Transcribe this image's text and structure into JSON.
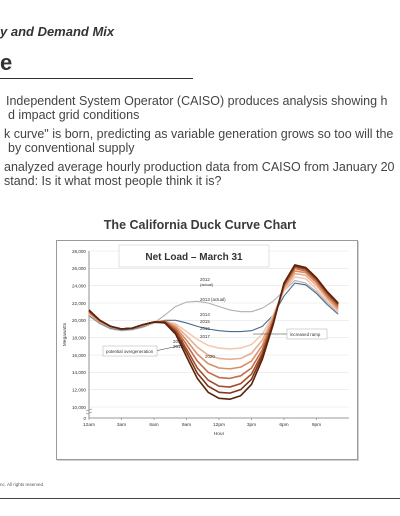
{
  "slide": {
    "kicker": "y and Demand Mix",
    "title": "e",
    "bullets": [
      "Independent System Operator (CAISO) produces analysis showing h",
      "d impact grid conditions",
      "k curve\" is born, predicting as variable generation grows so too will the",
      "by conventional supply",
      "analyzed average hourly production data from CAISO from January 20",
      "stand: Is it what most people think it is?"
    ],
    "footer": "nc. All rights reserved."
  },
  "chart_caption": "The California Duck Curve Chart",
  "chart_data": {
    "type": "line",
    "title": "Net Load – March 31",
    "xlabel": "Hour",
    "ylabel": "Megawatts",
    "ylim": [
      0,
      28000
    ],
    "y_ticks": [
      0,
      10000,
      12000,
      14000,
      16000,
      18000,
      20000,
      22000,
      24000,
      26000,
      28000
    ],
    "y_tick_labels": [
      "0",
      "10,000",
      "12,000",
      "14,000",
      "16,000",
      "18,000",
      "20,000",
      "22,000",
      "24,000",
      "26,000",
      "28,000"
    ],
    "x_ticks": [
      0,
      3,
      6,
      9,
      12,
      15,
      18,
      21
    ],
    "x_tick_labels": [
      "12am",
      "3am",
      "6am",
      "9am",
      "12pm",
      "3pm",
      "6pm",
      "9pm"
    ],
    "xlim": [
      0,
      24
    ],
    "annotations": [
      "increased ramp",
      "potential overgeneration"
    ],
    "series": [
      {
        "name": "2012 (actual)",
        "color": "#b0b0b0",
        "values": [
          [
            0,
            20500
          ],
          [
            1,
            19600
          ],
          [
            2,
            19000
          ],
          [
            3,
            18800
          ],
          [
            4,
            18900
          ],
          [
            5,
            19200
          ],
          [
            6,
            19700
          ],
          [
            7,
            20600
          ],
          [
            8,
            21600
          ],
          [
            9,
            22100
          ],
          [
            10,
            22200
          ],
          [
            11,
            22000
          ],
          [
            12,
            21600
          ],
          [
            13,
            21200
          ],
          [
            14,
            21000
          ],
          [
            15,
            21000
          ],
          [
            16,
            21400
          ],
          [
            17,
            22200
          ],
          [
            18,
            23400
          ],
          [
            19,
            24600
          ],
          [
            20,
            24300
          ],
          [
            21,
            23300
          ],
          [
            22,
            22000
          ],
          [
            23,
            20900
          ]
        ]
      },
      {
        "name": "2013 (actual)",
        "color": "#4a6a8a",
        "values": [
          [
            0,
            20600
          ],
          [
            1,
            19700
          ],
          [
            2,
            19100
          ],
          [
            3,
            18900
          ],
          [
            4,
            19000
          ],
          [
            5,
            19300
          ],
          [
            6,
            19700
          ],
          [
            7,
            20000
          ],
          [
            8,
            20000
          ],
          [
            9,
            19700
          ],
          [
            10,
            19300
          ],
          [
            11,
            19000
          ],
          [
            12,
            18800
          ],
          [
            13,
            18700
          ],
          [
            14,
            18700
          ],
          [
            15,
            18800
          ],
          [
            16,
            19300
          ],
          [
            17,
            20600
          ],
          [
            18,
            22800
          ],
          [
            19,
            24300
          ],
          [
            20,
            24100
          ],
          [
            21,
            23100
          ],
          [
            22,
            21800
          ],
          [
            23,
            20700
          ]
        ]
      },
      {
        "name": "2014",
        "color": "#f1cbb4",
        "values": [
          [
            0,
            20700
          ],
          [
            1,
            19800
          ],
          [
            2,
            19200
          ],
          [
            3,
            19000
          ],
          [
            4,
            19100
          ],
          [
            5,
            19400
          ],
          [
            6,
            19700
          ],
          [
            7,
            19900
          ],
          [
            8,
            19600
          ],
          [
            9,
            18700
          ],
          [
            10,
            17800
          ],
          [
            11,
            17100
          ],
          [
            12,
            16800
          ],
          [
            13,
            16700
          ],
          [
            14,
            16800
          ],
          [
            15,
            17200
          ],
          [
            16,
            18400
          ],
          [
            17,
            20600
          ],
          [
            18,
            23400
          ],
          [
            19,
            25000
          ],
          [
            20,
            24800
          ],
          [
            21,
            23600
          ],
          [
            22,
            22200
          ],
          [
            23,
            21000
          ]
        ]
      },
      {
        "name": "2015",
        "color": "#e8ae90",
        "values": [
          [
            0,
            20800
          ],
          [
            1,
            19800
          ],
          [
            2,
            19200
          ],
          [
            3,
            19000
          ],
          [
            4,
            19100
          ],
          [
            5,
            19400
          ],
          [
            6,
            19700
          ],
          [
            7,
            19900
          ],
          [
            8,
            19400
          ],
          [
            9,
            18200
          ],
          [
            10,
            16900
          ],
          [
            11,
            16000
          ],
          [
            12,
            15600
          ],
          [
            13,
            15500
          ],
          [
            14,
            15600
          ],
          [
            15,
            16200
          ],
          [
            16,
            17700
          ],
          [
            17,
            20400
          ],
          [
            18,
            23600
          ],
          [
            19,
            25400
          ],
          [
            20,
            25200
          ],
          [
            21,
            24000
          ],
          [
            22,
            22500
          ],
          [
            23,
            21200
          ]
        ]
      },
      {
        "name": "2016",
        "color": "#d98e6a",
        "values": [
          [
            0,
            20900
          ],
          [
            1,
            19900
          ],
          [
            2,
            19300
          ],
          [
            3,
            19000
          ],
          [
            4,
            19100
          ],
          [
            5,
            19500
          ],
          [
            6,
            19800
          ],
          [
            7,
            19900
          ],
          [
            8,
            19200
          ],
          [
            9,
            17700
          ],
          [
            10,
            16100
          ],
          [
            11,
            15000
          ],
          [
            12,
            14500
          ],
          [
            13,
            14400
          ],
          [
            14,
            14600
          ],
          [
            15,
            15300
          ],
          [
            16,
            17100
          ],
          [
            17,
            20200
          ],
          [
            18,
            23800
          ],
          [
            19,
            25700
          ],
          [
            20,
            25500
          ],
          [
            21,
            24300
          ],
          [
            22,
            22700
          ],
          [
            23,
            21400
          ]
        ]
      },
      {
        "name": "2017",
        "color": "#c46d48",
        "values": [
          [
            0,
            21000
          ],
          [
            1,
            19900
          ],
          [
            2,
            19300
          ],
          [
            3,
            19000
          ],
          [
            4,
            19100
          ],
          [
            5,
            19500
          ],
          [
            6,
            19800
          ],
          [
            7,
            19900
          ],
          [
            8,
            19000
          ],
          [
            9,
            17200
          ],
          [
            10,
            15300
          ],
          [
            11,
            14000
          ],
          [
            12,
            13400
          ],
          [
            13,
            13300
          ],
          [
            14,
            13600
          ],
          [
            15,
            14500
          ],
          [
            16,
            16600
          ],
          [
            17,
            20000
          ],
          [
            18,
            24000
          ],
          [
            19,
            26000
          ],
          [
            20,
            25700
          ],
          [
            21,
            24500
          ],
          [
            22,
            22900
          ],
          [
            23,
            21600
          ]
        ]
      },
      {
        "name": "2018",
        "color": "#a44f2c",
        "values": [
          [
            0,
            21100
          ],
          [
            1,
            20000
          ],
          [
            2,
            19300
          ],
          [
            3,
            19000
          ],
          [
            4,
            19100
          ],
          [
            5,
            19500
          ],
          [
            6,
            19800
          ],
          [
            7,
            19800
          ],
          [
            8,
            18800
          ],
          [
            9,
            16700
          ],
          [
            10,
            14500
          ],
          [
            11,
            13100
          ],
          [
            12,
            12400
          ],
          [
            13,
            12300
          ],
          [
            14,
            12700
          ],
          [
            15,
            13800
          ],
          [
            16,
            16200
          ],
          [
            17,
            19800
          ],
          [
            18,
            24100
          ],
          [
            19,
            26200
          ],
          [
            20,
            25900
          ],
          [
            21,
            24700
          ],
          [
            22,
            23100
          ],
          [
            23,
            21800
          ]
        ]
      },
      {
        "name": "2019",
        "color": "#7e3618",
        "values": [
          [
            0,
            21100
          ],
          [
            1,
            20000
          ],
          [
            2,
            19300
          ],
          [
            3,
            19000
          ],
          [
            4,
            19100
          ],
          [
            5,
            19500
          ],
          [
            6,
            19800
          ],
          [
            7,
            19800
          ],
          [
            8,
            18600
          ],
          [
            9,
            16300
          ],
          [
            10,
            13900
          ],
          [
            11,
            12400
          ],
          [
            12,
            11700
          ],
          [
            13,
            11600
          ],
          [
            14,
            12000
          ],
          [
            15,
            13200
          ],
          [
            16,
            15900
          ],
          [
            17,
            19700
          ],
          [
            18,
            24200
          ],
          [
            19,
            26300
          ],
          [
            20,
            26000
          ],
          [
            21,
            24800
          ],
          [
            22,
            23200
          ],
          [
            23,
            21900
          ]
        ]
      },
      {
        "name": "2020",
        "color": "#5a2208",
        "values": [
          [
            0,
            21200
          ],
          [
            1,
            20000
          ],
          [
            2,
            19300
          ],
          [
            3,
            19000
          ],
          [
            4,
            19100
          ],
          [
            5,
            19500
          ],
          [
            6,
            19800
          ],
          [
            7,
            19700
          ],
          [
            8,
            18400
          ],
          [
            9,
            15800
          ],
          [
            10,
            13300
          ],
          [
            11,
            11700
          ],
          [
            12,
            11000
          ],
          [
            13,
            10900
          ],
          [
            14,
            11300
          ],
          [
            15,
            12600
          ],
          [
            16,
            15500
          ],
          [
            17,
            19500
          ],
          [
            18,
            24300
          ],
          [
            19,
            26400
          ],
          [
            20,
            26100
          ],
          [
            21,
            24900
          ],
          [
            22,
            23300
          ],
          [
            23,
            22000
          ]
        ]
      }
    ]
  }
}
